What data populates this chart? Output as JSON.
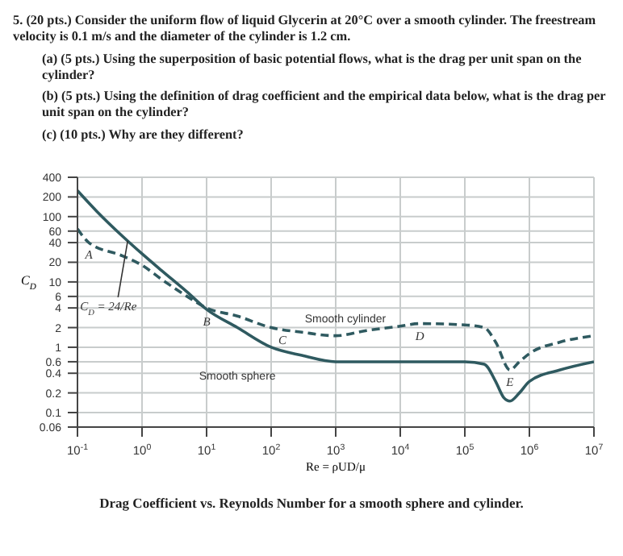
{
  "chart_data": {
    "type": "line",
    "title": "Drag Coefficient vs. Reynolds Number for a smooth sphere and cylinder.",
    "annotations": [
      "5. (20 pts.) Consider the uniform flow of liquid Glycerin at 20°C over a smooth cylinder. The freestream velocity is 0.1 m/s and the diameter of the cylinder is 1.2 cm.",
      "(a) (5 pts.) Using the superposition of basic potential flows, what is the drag per unit span on the cylinder?",
      "(b) (5 pts.) Using the definition of drag coefficient and the empirical data below, what is the drag per unit span on the cylinder?",
      "(c) (10 pts.) Why are they different?",
      {
        "text": "A",
        "x": 0.15,
        "y": 40
      },
      {
        "text": "B",
        "x": 10,
        "y": 3.8
      },
      {
        "text": "C",
        "x": 150,
        "y": 2
      },
      {
        "text": "D",
        "x": 20000,
        "y": 2.3
      },
      {
        "text": "E",
        "x": 500000,
        "y": 0.45
      },
      {
        "text": "C$_{D}$ = 24/Re",
        "x": 0.6,
        "y": 45
      }
    ],
    "xlabel": "Re = ρUD/μ",
    "ylabel": "C$_{D}$",
    "log": "xy",
    "grid": true,
    "legend": false,
    "marker": "none",
    "xlim": [
      0.1,
      10000000
    ],
    "xticks": [
      {
        "value": 0.1,
        "label": "10$^{-1}$"
      },
      {
        "value": 1,
        "label": "10$^{0}$"
      },
      {
        "value": 10,
        "label": "10$^{1}$"
      },
      {
        "value": 100,
        "label": "10$^{2}$"
      },
      {
        "value": 1000,
        "label": "10$^{3}$"
      },
      {
        "value": 10000,
        "label": "10$^{4}$"
      },
      {
        "value": 100000,
        "label": "10$^{5}$"
      },
      {
        "value": 1000000,
        "label": "10$^{6}$"
      },
      {
        "value": 10000000,
        "label": "10$^{7}$"
      }
    ],
    "ylim": [
      0.06,
      400
    ],
    "yticks": [
      0.06,
      0.1,
      0.2,
      0.4,
      0.6,
      1,
      2,
      4,
      6,
      10,
      20,
      40,
      60,
      100,
      200,
      400
    ],
    "series": [
      {
        "name": "Smooth cylinder",
        "color": "#2f5a60",
        "line_style": "dashed",
        "x": [
          0.1,
          0.15,
          0.5,
          1,
          2,
          5,
          10,
          30,
          100,
          300,
          1000,
          3000,
          10000,
          20000,
          100000,
          200000,
          300000,
          500000,
          700000,
          1000000,
          3000000,
          10000000
        ],
        "values": [
          65,
          40,
          25,
          18,
          11,
          6,
          4,
          3,
          2,
          1.7,
          1.5,
          1.8,
          2.1,
          2.3,
          2.2,
          2,
          1.2,
          0.45,
          0.6,
          0.8,
          1.2,
          1.5
        ]
      },
      {
        "name": "Smooth sphere",
        "color": "#2f5a60",
        "line_style": "solid",
        "x": [
          0.1,
          0.2,
          0.5,
          1,
          2,
          5,
          10,
          30,
          100,
          300,
          1000,
          3000,
          10000,
          100000,
          200000,
          300000,
          400000,
          500000,
          700000,
          1000000,
          3000000,
          10000000
        ],
        "values": [
          250,
          120,
          50,
          27,
          15,
          7,
          3.8,
          2,
          1,
          0.75,
          0.6,
          0.6,
          0.6,
          0.6,
          0.55,
          0.3,
          0.17,
          0.15,
          0.2,
          0.3,
          0.45,
          0.6
        ]
      }
    ]
  }
}
